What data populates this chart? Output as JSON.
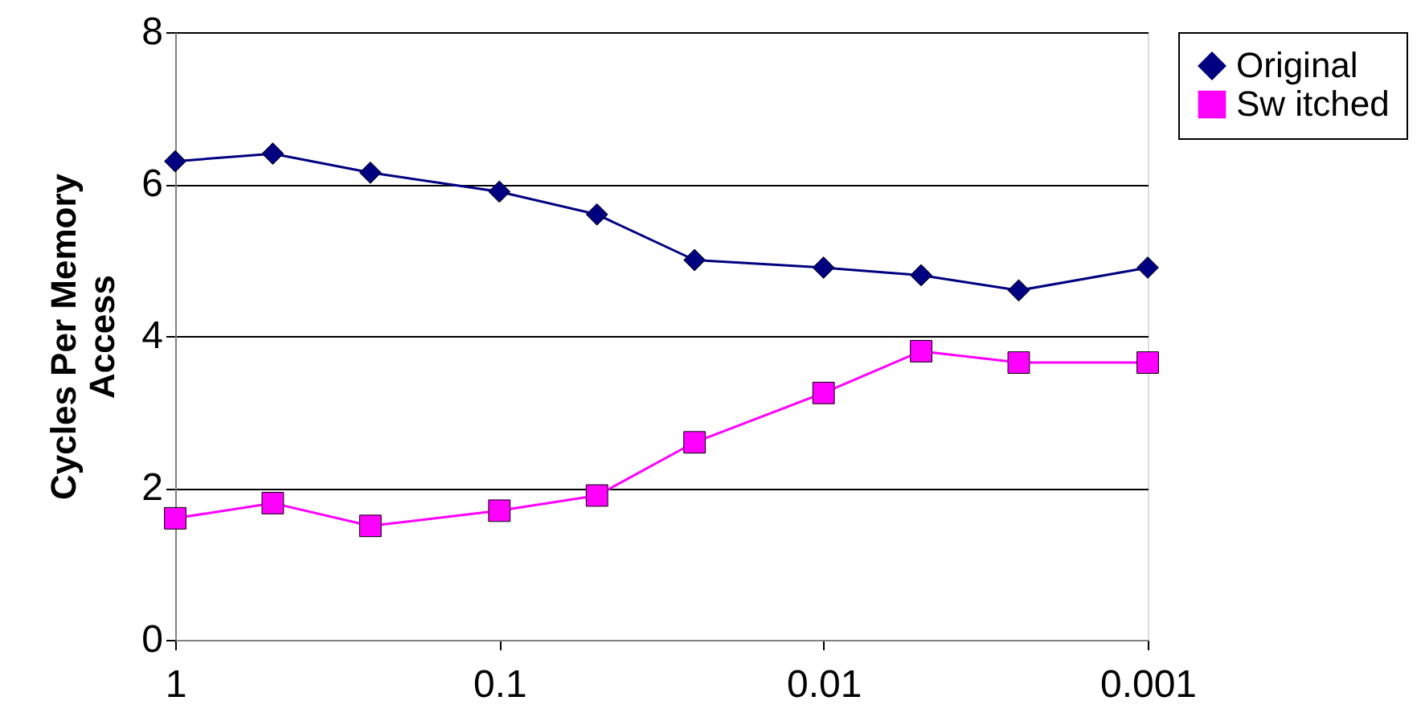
{
  "chart_data": {
    "type": "line",
    "ylabel": "Cycles Per Memory Access",
    "x": [
      1,
      0.5,
      0.25,
      0.1,
      0.05,
      0.025,
      0.01,
      0.005,
      0.0025,
      0.001
    ],
    "series": [
      {
        "name": "Original",
        "color": "#000080",
        "marker": "diamond",
        "values": [
          6.3,
          6.4,
          6.15,
          5.9,
          5.6,
          5.0,
          4.9,
          4.8,
          4.6,
          4.9
        ]
      },
      {
        "name": "Sw itched",
        "color": "#ff00ff",
        "marker": "square",
        "values": [
          1.6,
          1.8,
          1.5,
          1.7,
          1.9,
          2.6,
          3.25,
          3.8,
          3.65,
          3.65
        ]
      }
    ],
    "log": "x",
    "xlim": [
      1,
      0.001
    ],
    "xticks": [
      1,
      0.1,
      0.01,
      0.001
    ],
    "ylim": [
      0,
      8
    ],
    "yticks": [
      0,
      2,
      4,
      6,
      8
    ],
    "grid": "y",
    "legend": "right",
    "line_style": "solid"
  }
}
